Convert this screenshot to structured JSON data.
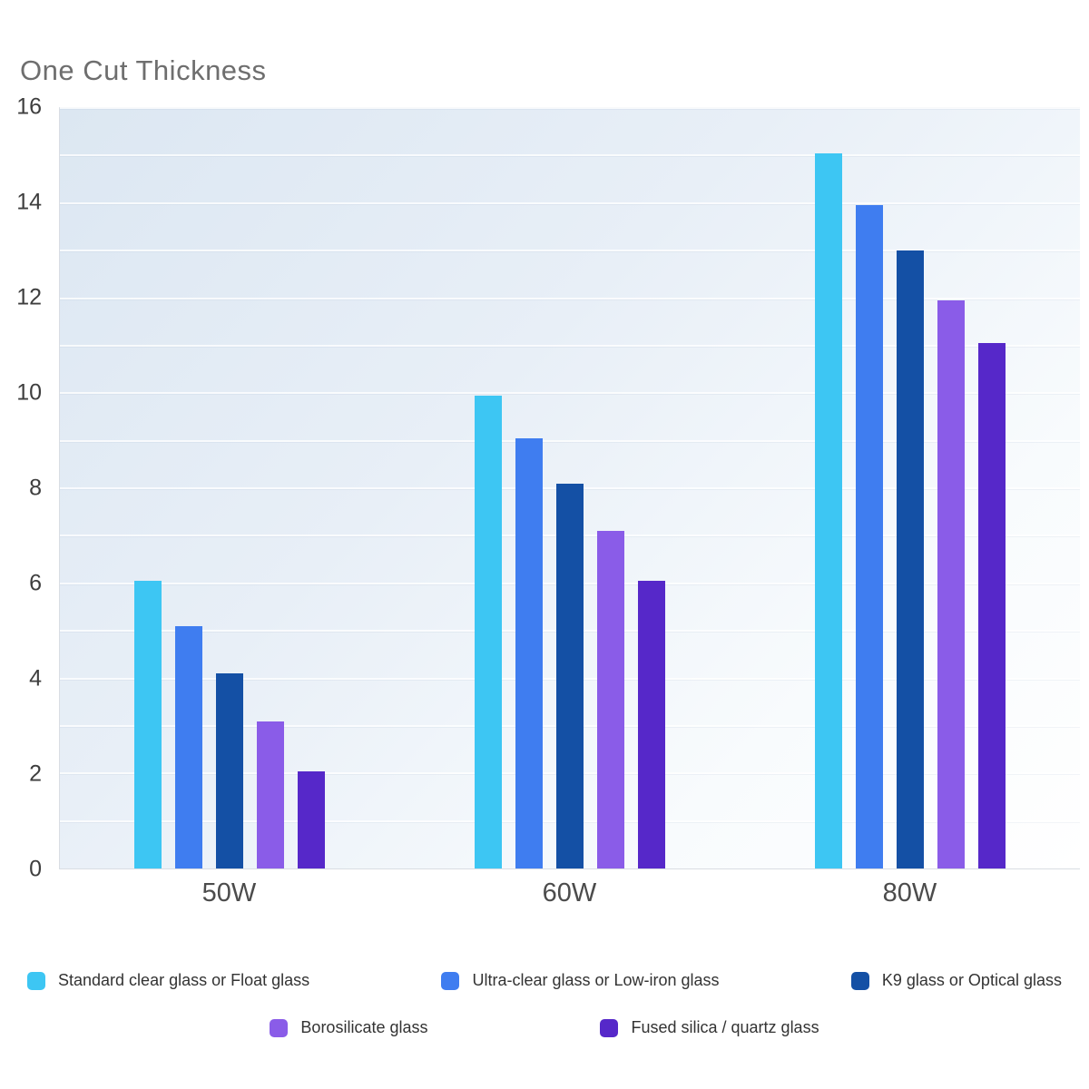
{
  "title": "One Cut Thickness",
  "chart_data": {
    "type": "bar",
    "title": "One Cut Thickness",
    "categories": [
      "50W",
      "60W",
      "80W"
    ],
    "series": [
      {
        "name": "Standard clear glass or Float glass",
        "color": "#3DC6F3",
        "values": [
          6.05,
          9.95,
          15.05
        ]
      },
      {
        "name": "Ultra-clear glass or Low-iron glass",
        "color": "#3F7DF0",
        "values": [
          5.1,
          9.05,
          13.95
        ]
      },
      {
        "name": "K9 glass or Optical glass",
        "color": "#1450A5",
        "values": [
          4.1,
          8.1,
          13.0
        ]
      },
      {
        "name": "Borosilicate glass",
        "color": "#8A5CE8",
        "values": [
          3.1,
          7.1,
          11.95
        ]
      },
      {
        "name": "Fused silica / quartz glass",
        "color": "#5628C9",
        "values": [
          2.05,
          6.05,
          11.05
        ]
      }
    ],
    "xlabel": "",
    "ylabel": "",
    "ylim": [
      0,
      16
    ],
    "yticks": [
      0,
      2,
      4,
      6,
      8,
      10,
      12,
      14,
      16
    ],
    "grid": true,
    "grid_interval": 1,
    "legend_position": "bottom"
  }
}
